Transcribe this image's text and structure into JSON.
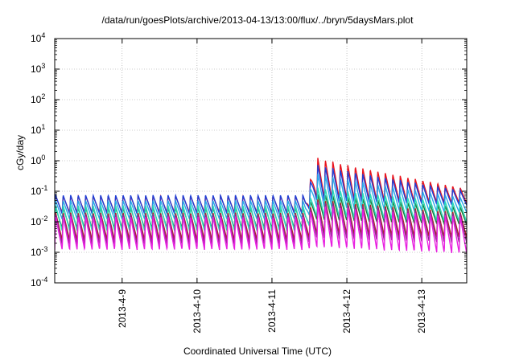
{
  "chart_data": {
    "type": "line",
    "title": "/data/run/goesPlots/archive/2013-04-13/13:00/flux/../bryn/5daysMars.plot",
    "xlabel": "Coordinated Universal Time (UTC)",
    "ylabel": "cGy/day",
    "y_scale": "log",
    "ylim": [
      0.0001,
      10000
    ],
    "y_ticks": [
      {
        "base": "10",
        "exp": "-4"
      },
      {
        "base": "10",
        "exp": "-3"
      },
      {
        "base": "10",
        "exp": "-2"
      },
      {
        "base": "10",
        "exp": "-1"
      },
      {
        "base": "10",
        "exp": "0"
      },
      {
        "base": "10",
        "exp": "1"
      },
      {
        "base": "10",
        "exp": "2"
      },
      {
        "base": "10",
        "exp": "3"
      },
      {
        "base": "10",
        "exp": "4"
      }
    ],
    "x_range_days": [
      8.1,
      13.6
    ],
    "x_ticks": [
      {
        "label": "2013-4-9",
        "day": 9
      },
      {
        "label": "2013-4-10",
        "day": 10
      },
      {
        "label": "2013-4-11",
        "day": 11
      },
      {
        "label": "2013-4-12",
        "day": 12
      },
      {
        "label": "2013-4-13",
        "day": 13
      }
    ],
    "grid": true,
    "event_day": 11.45,
    "period_days": 0.1,
    "series": [
      {
        "color": "#e8141e",
        "peak_pre": 0.07,
        "trough_pre": 0.02,
        "peak_post": 1.6,
        "trough_post": 0.06,
        "peak_end": 0.12,
        "trough_end": 0.04
      },
      {
        "color": "#1f3fd6",
        "peak_pre": 0.075,
        "trough_pre": 0.018,
        "peak_post": 0.9,
        "trough_post": 0.05,
        "peak_end": 0.1,
        "trough_end": 0.035
      },
      {
        "color": "#2aa7e8",
        "peak_pre": 0.05,
        "trough_pre": 0.012,
        "peak_post": 0.45,
        "trough_post": 0.03,
        "peak_end": 0.06,
        "trough_end": 0.02
      },
      {
        "color": "#1b7a3a",
        "peak_pre": 0.03,
        "trough_pre": 0.006,
        "peak_post": 0.09,
        "trough_post": 0.012,
        "peak_end": 0.03,
        "trough_end": 0.008
      },
      {
        "color": "#2bd9b9",
        "peak_pre": 0.035,
        "trough_pre": 0.005,
        "peak_post": 0.15,
        "trough_post": 0.015,
        "peak_end": 0.04,
        "trough_end": 0.01
      },
      {
        "color": "#b21f1f",
        "peak_pre": 0.02,
        "trough_pre": 0.0025,
        "peak_post": 0.06,
        "trough_post": 0.004,
        "peak_end": 0.02,
        "trough_end": 0.003
      },
      {
        "color": "#8e2a8e",
        "peak_pre": 0.018,
        "trough_pre": 0.0018,
        "peak_post": 0.05,
        "trough_post": 0.003,
        "peak_end": 0.018,
        "trough_end": 0.002
      },
      {
        "color": "#e81fe0",
        "peak_pre": 0.015,
        "trough_pre": 0.0012,
        "peak_post": 0.04,
        "trough_post": 0.0015,
        "peak_end": 0.015,
        "trough_end": 0.0009
      }
    ]
  }
}
